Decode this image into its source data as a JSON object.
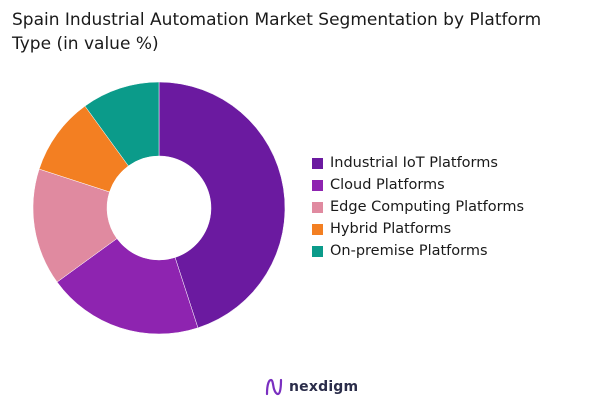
{
  "title_lines": [
    "Spain Industrial Automation Market Segmentation by Platform",
    "Type (in value %)"
  ],
  "brand": {
    "name": "nexdigm",
    "icon": "nexdigm-logo-icon",
    "color": "#7a2fc0"
  },
  "chart_data": {
    "type": "pie",
    "subtype": "donut",
    "title": "Spain Industrial Automation Market Segmentation by Platform Type (in value %)",
    "categories": [
      "Industrial IoT Platforms",
      "Cloud Platforms",
      "Edge Computing Platforms",
      "Hybrid Platforms",
      "On-premise Platforms"
    ],
    "values": [
      45,
      20,
      15,
      10,
      10
    ],
    "colors": [
      "#6b1aa0",
      "#8e24b0",
      "#e08aa0",
      "#f37f22",
      "#0b9b8a"
    ],
    "legend_position": "right"
  }
}
